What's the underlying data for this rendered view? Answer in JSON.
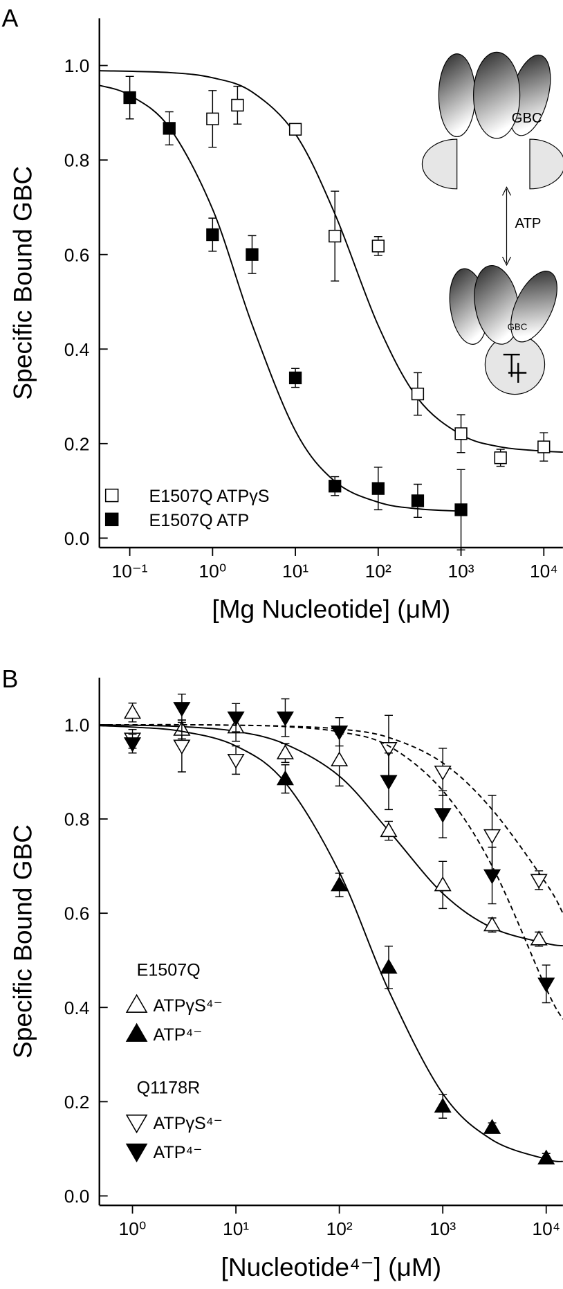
{
  "chart_data": [
    {
      "type": "scatter",
      "panel_label": "A",
      "xlabel": "[Mg Nucleotide] (μM)",
      "ylabel": "Specific Bound GBC",
      "log_x": true,
      "xlim": [
        0.043,
        17000
      ],
      "ylim": [
        -0.02,
        1.1
      ],
      "xticks": [
        {
          "value": 0.1,
          "label": "10⁻¹"
        },
        {
          "value": 1,
          "label": "10⁰"
        },
        {
          "value": 10,
          "label": "10¹"
        },
        {
          "value": 100,
          "label": "10²"
        },
        {
          "value": 1000,
          "label": "10³"
        },
        {
          "value": 10000,
          "label": "10⁴"
        }
      ],
      "yticks": [
        {
          "value": 0,
          "label": "0.0"
        },
        0.2,
        0.4,
        0.6,
        0.8,
        {
          "value": 1,
          "label": "1.0"
        }
      ],
      "annotations": [
        "GBC",
        "ATP",
        "GBC"
      ],
      "series": [
        {
          "name": "E1507Q  ATPγS",
          "marker": "square",
          "filled": false,
          "color": "#000000",
          "x": [
            1,
            2,
            10,
            30,
            100,
            300,
            1000,
            3000,
            10000
          ],
          "values": [
            0.887,
            0.916,
            0.865,
            0.639,
            0.618,
            0.305,
            0.221,
            0.17,
            0.193
          ],
          "errors": [
            0.06,
            0.04,
            0.005,
            0.095,
            0.02,
            0.045,
            0.04,
            0.018,
            0.03
          ],
          "fit_x": [
            0.043,
            0.3,
            1,
            3,
            10,
            30,
            100,
            300,
            1000,
            3000,
            10000,
            17000
          ],
          "fit_y": [
            0.989,
            0.985,
            0.974,
            0.944,
            0.855,
            0.686,
            0.45,
            0.296,
            0.219,
            0.193,
            0.184,
            0.182
          ],
          "dashed": false
        },
        {
          "name": "E1507Q  ATP",
          "marker": "square",
          "filled": true,
          "color": "#000000",
          "x": [
            0.1,
            0.3,
            1,
            3,
            10,
            30,
            100,
            300,
            1000
          ],
          "values": [
            0.932,
            0.867,
            0.642,
            0.6,
            0.339,
            0.11,
            0.105,
            0.079,
            0.06
          ],
          "errors": [
            0.045,
            0.035,
            0.035,
            0.04,
            0.02,
            0.02,
            0.045,
            0.035,
            0.085
          ],
          "fit_x": [
            0.043,
            0.1,
            0.3,
            1,
            3,
            10,
            30,
            100,
            300,
            1000
          ],
          "fit_y": [
            0.958,
            0.937,
            0.869,
            0.696,
            0.452,
            0.227,
            0.12,
            0.076,
            0.062,
            0.057
          ],
          "dashed": false
        }
      ]
    },
    {
      "type": "scatter",
      "panel_label": "B",
      "xlabel": "[Nucleotide⁴⁻] (μM)",
      "ylabel": "Specific Bound GBC",
      "log_x": true,
      "xlim": [
        0.479,
        14500
      ],
      "ylim": [
        -0.02,
        1.1
      ],
      "xticks": [
        {
          "value": 1,
          "label": "10⁰"
        },
        {
          "value": 10,
          "label": "10¹"
        },
        {
          "value": 100,
          "label": "10²"
        },
        {
          "value": 1000,
          "label": "10³"
        },
        {
          "value": 10000,
          "label": "10⁴"
        }
      ],
      "yticks": [
        {
          "value": 0,
          "label": "0.0"
        },
        0.2,
        0.4,
        0.6,
        0.8,
        {
          "value": 1,
          "label": "1.0"
        }
      ],
      "legend_titles": [
        "E1507Q",
        "Q1178R"
      ],
      "series": [
        {
          "name": "ATPγS⁴⁻",
          "marker": "triangle-up",
          "filled": false,
          "color": "#000000",
          "x": [
            1,
            3,
            10,
            30,
            100,
            300,
            1000,
            3000,
            8500
          ],
          "values": [
            1.026,
            0.99,
            0.995,
            0.94,
            0.925,
            0.775,
            0.66,
            0.575,
            0.545
          ],
          "errors": [
            0.02,
            0.02,
            0.03,
            0.02,
            0.055,
            0.02,
            0.05,
            0.015,
            0.015
          ],
          "fit_x": [
            0.479,
            1,
            3,
            10,
            30,
            100,
            300,
            1000,
            3000,
            10000,
            14500
          ],
          "fit_y": [
            0.999,
            0.999,
            0.996,
            0.986,
            0.959,
            0.891,
            0.775,
            0.642,
            0.569,
            0.536,
            0.531
          ],
          "dashed": false
        },
        {
          "name": "ATP⁴⁻",
          "marker": "triangle-up",
          "filled": true,
          "color": "#000000",
          "x": [
            30,
            100,
            300,
            1000,
            3000,
            10000
          ],
          "values": [
            0.885,
            0.66,
            0.485,
            0.19,
            0.145,
            0.08
          ],
          "errors": [
            0.03,
            0.025,
            0.045,
            0.025,
            0.01,
            0.01
          ],
          "fit_x": [
            0.479,
            1,
            3,
            10,
            30,
            100,
            300,
            1000,
            3000,
            10000,
            14500
          ],
          "fit_y": [
            0.998,
            0.995,
            0.986,
            0.955,
            0.877,
            0.687,
            0.436,
            0.217,
            0.119,
            0.078,
            0.073
          ],
          "dashed": false
        },
        {
          "name": "ATPγS⁴⁻",
          "marker": "triangle-down",
          "filled": false,
          "color": "#000000",
          "x": [
            1,
            3,
            10,
            300,
            1000,
            3000,
            8500
          ],
          "values": [
            0.97,
            0.955,
            0.925,
            0.95,
            0.9,
            0.765,
            0.67
          ],
          "errors": [
            0.02,
            0.055,
            0.03,
            0.07,
            0.05,
            0.085,
            0.02
          ],
          "fit_x": [
            0.479,
            1,
            3,
            10,
            30,
            100,
            300,
            1000,
            3000,
            10000,
            14500
          ],
          "fit_y": [
            1.0,
            1.0,
            1.0,
            0.999,
            0.997,
            0.991,
            0.973,
            0.919,
            0.82,
            0.663,
            0.6
          ],
          "dashed": true
        },
        {
          "name": "ATP⁴⁻",
          "marker": "triangle-down",
          "filled": true,
          "color": "#000000",
          "x": [
            1,
            3,
            10,
            30,
            100,
            300,
            1000,
            3000,
            10000
          ],
          "values": [
            0.96,
            1.035,
            1.015,
            1.015,
            0.985,
            0.88,
            0.81,
            0.68,
            0.45
          ],
          "errors": [
            0.02,
            0.03,
            0.03,
            0.04,
            0.03,
            0.06,
            0.05,
            0.06,
            0.04
          ],
          "fit_x": [
            0.479,
            1,
            3,
            10,
            30,
            100,
            300,
            1000,
            3000,
            10000,
            14500
          ],
          "fit_y": [
            1.0,
            1.0,
            1.0,
            0.999,
            0.996,
            0.985,
            0.955,
            0.86,
            0.7,
            0.44,
            0.375
          ],
          "dashed": true
        }
      ]
    }
  ]
}
